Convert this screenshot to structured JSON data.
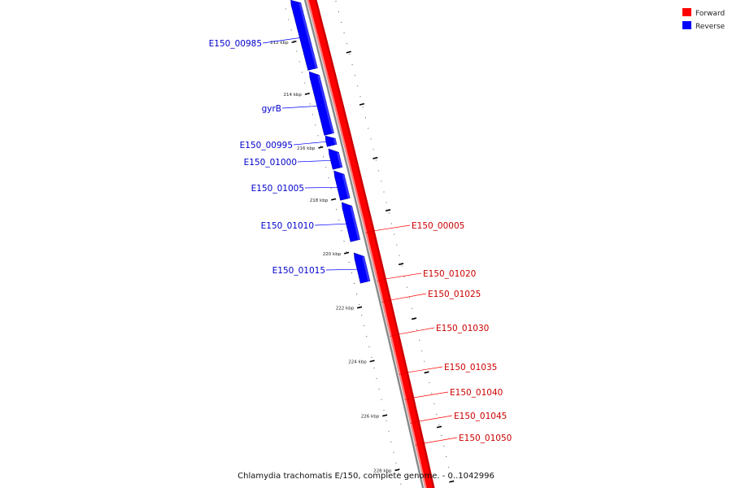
{
  "map": {
    "title": "Chlamydia trachomatis E/150, complete genome. - 0..1042996",
    "colors": {
      "forward": "#ff0000",
      "forward_dark": "#cc0000",
      "forward_light": "#ff8080",
      "reverse": "#0000ff",
      "reverse_dark": "#0000aa",
      "backbone": "#888888",
      "forward_label": "#cc0000",
      "reverse_label": "#0000cc"
    }
  },
  "legend": {
    "forward": "Forward",
    "reverse": "Reverse"
  },
  "ticks": [
    "212 kbp",
    "214 kbp",
    "216 kbp",
    "218 kbp",
    "220 kbp",
    "222 kbp",
    "224 kbp",
    "226 kbp",
    "228 kbp"
  ],
  "reverse_genes": [
    "E150_00985",
    "gyrB",
    "E150_00995",
    "E150_01000",
    "E150_01005",
    "E150_01010",
    "E150_01015"
  ],
  "forward_genes": [
    "E150_00005",
    "E150_01020",
    "E150_01025",
    "E150_01030",
    "E150_01035",
    "E150_01040",
    "E150_01045",
    "E150_01050"
  ]
}
